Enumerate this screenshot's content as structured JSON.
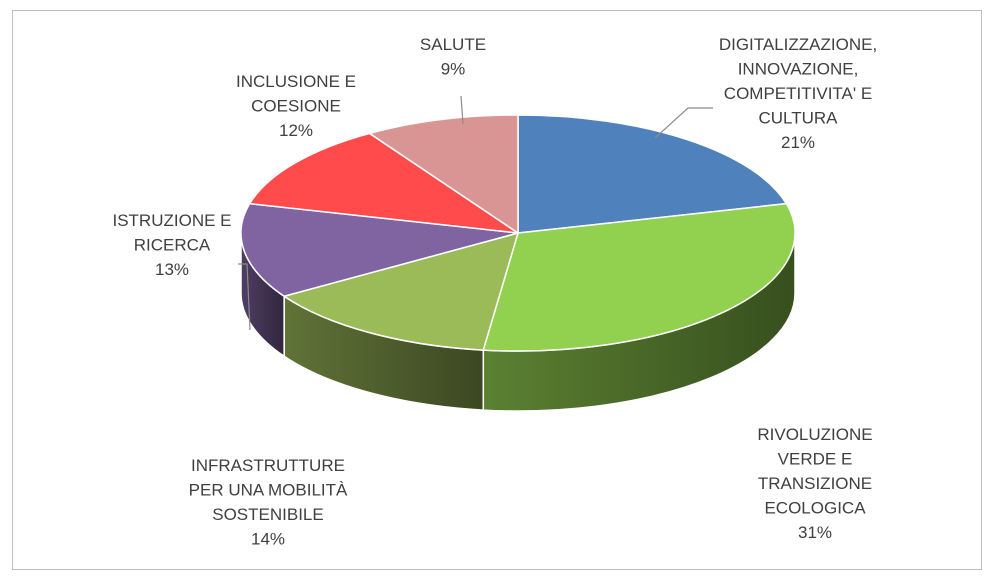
{
  "chart_data": {
    "type": "pie",
    "title": "",
    "slices": [
      {
        "name_lines": [
          "DIGITALIZZAZIONE,",
          "INNOVAZIONE,",
          "COMPETITIVITA' E",
          "CULTURA"
        ],
        "pct_label": "21%",
        "value": 21,
        "color": "#4f81bd"
      },
      {
        "name_lines": [
          "RIVOLUZIONE",
          "VERDE E",
          "TRANSIZIONE",
          "ECOLOGICA"
        ],
        "pct_label": "31%",
        "value": 31,
        "color": "#92d050"
      },
      {
        "name_lines": [
          "INFRASTRUTTURE",
          "PER UNA MOBILITÀ",
          "SOSTENIBILE"
        ],
        "pct_label": "14%",
        "value": 14,
        "color": "#9bbb59"
      },
      {
        "name_lines": [
          "ISTRUZIONE E",
          "RICERCA"
        ],
        "pct_label": "13%",
        "value": 13,
        "color": "#8064a2"
      },
      {
        "name_lines": [
          "INCLUSIONE E",
          "COESIONE"
        ],
        "pct_label": "12%",
        "value": 12,
        "color": "#ff4b4b"
      },
      {
        "name_lines": [
          "SALUTE"
        ],
        "pct_label": "9%",
        "value": 9,
        "color": "#d99594"
      }
    ]
  }
}
